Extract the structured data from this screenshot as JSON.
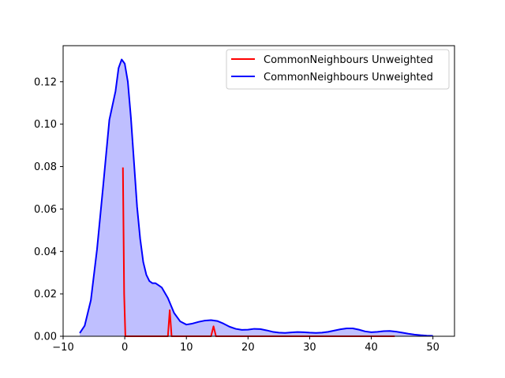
{
  "chart_data": {
    "type": "line",
    "title": "",
    "xlabel": "",
    "ylabel": "",
    "xlim": [
      -10,
      53.5
    ],
    "ylim": [
      0,
      0.137
    ],
    "xticks": [
      -10,
      0,
      10,
      20,
      30,
      40,
      50
    ],
    "yticks": [
      0.0,
      0.02,
      0.04,
      0.06,
      0.08,
      0.1,
      0.12
    ],
    "xtick_labels": [
      "−10",
      "0",
      "10",
      "20",
      "30",
      "40",
      "50"
    ],
    "ytick_labels": [
      "0.00",
      "0.02",
      "0.04",
      "0.06",
      "0.08",
      "0.10",
      "0.12"
    ],
    "grid": false,
    "legend_position": "top-right",
    "series": [
      {
        "name": "CommonNeighbours Unweighted",
        "color": "#ff0000",
        "fill": false,
        "x": [
          -0.3,
          -0.1,
          0.1,
          0.3,
          7.0,
          7.3,
          7.6,
          8.0,
          14.0,
          14.4,
          14.8,
          43.8
        ],
        "y": [
          0.0796,
          0.02,
          0.0,
          0.0,
          0.0,
          0.0123,
          0.0,
          0.0,
          0.0,
          0.0047,
          0.0,
          0.0
        ]
      },
      {
        "name": "CommonNeighbours Unweighted",
        "color": "#0000ff",
        "fill": true,
        "fill_color": "#bfbfff",
        "x": [
          -7.3,
          -6.5,
          -5.5,
          -4.5,
          -3.5,
          -2.5,
          -1.5,
          -1.0,
          -0.5,
          0.0,
          0.5,
          1.0,
          1.5,
          2.0,
          2.5,
          3.0,
          3.5,
          4.0,
          4.5,
          5.0,
          5.5,
          6.0,
          7.0,
          8.0,
          9.0,
          10.0,
          11.0,
          12.0,
          13.0,
          14.0,
          15.0,
          16.0,
          17.0,
          18.0,
          19.0,
          20.0,
          21.0,
          22.0,
          23.0,
          24.0,
          25.0,
          26.0,
          27.0,
          28.0,
          29.0,
          30.0,
          31.0,
          32.0,
          33.0,
          34.0,
          35.0,
          36.0,
          37.0,
          38.0,
          39.0,
          40.0,
          41.0,
          42.0,
          43.0,
          44.0,
          45.0,
          46.0,
          47.0,
          48.0,
          49.0,
          50.0
        ],
        "y": [
          0.0015,
          0.005,
          0.017,
          0.041,
          0.071,
          0.102,
          0.1155,
          0.1265,
          0.1305,
          0.1285,
          0.12,
          0.103,
          0.082,
          0.061,
          0.046,
          0.035,
          0.029,
          0.026,
          0.025,
          0.025,
          0.024,
          0.023,
          0.018,
          0.011,
          0.007,
          0.0055,
          0.006,
          0.0068,
          0.0074,
          0.0076,
          0.0072,
          0.006,
          0.0045,
          0.0035,
          0.003,
          0.0031,
          0.0035,
          0.0034,
          0.0028,
          0.0021,
          0.0017,
          0.0016,
          0.0018,
          0.002,
          0.0019,
          0.0017,
          0.0016,
          0.0017,
          0.0021,
          0.0027,
          0.0033,
          0.0037,
          0.0037,
          0.0031,
          0.0023,
          0.0019,
          0.0021,
          0.0024,
          0.0025,
          0.0022,
          0.0017,
          0.0012,
          0.0008,
          0.0005,
          0.0003,
          0.0002
        ]
      }
    ]
  }
}
